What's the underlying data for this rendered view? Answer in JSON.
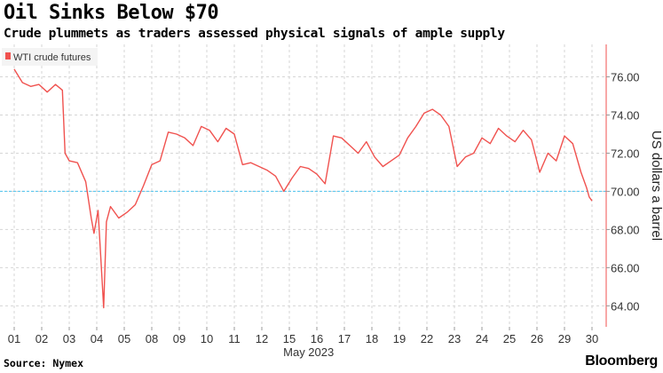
{
  "title": "Oil Sinks Below $70",
  "subtitle": "Crude plummets as traders assessed physical signals of ample supply",
  "footer": {
    "source": "Source: Nymex",
    "brand": "Bloomberg"
  },
  "colors": {
    "line": "#f0524f",
    "reference": "#5ec8ee",
    "grid": "#d6d6d6",
    "legend_swatch": "#f0524f"
  },
  "chart_data": {
    "type": "line",
    "title": "Oil Sinks Below $70",
    "subtitle": "Crude plummets as traders assessed physical signals of ample supply",
    "ylabel": "US dollars a barrel",
    "xlabel": "May 2023",
    "ylim": [
      62.9,
      77.7
    ],
    "yticks": [
      64,
      66,
      68,
      70,
      72,
      74,
      76
    ],
    "ytick_labels": [
      "64.00",
      "66.00",
      "68.00",
      "70.00",
      "72.00",
      "74.00",
      "76.00"
    ],
    "xtick_labels": [
      "01",
      "02",
      "03",
      "04",
      "05",
      "08",
      "09",
      "10",
      "11",
      "12",
      "15",
      "16",
      "17",
      "18",
      "19",
      "22",
      "23",
      "24",
      "25",
      "26",
      "29",
      "30"
    ],
    "x_month_label": "May 2023",
    "reference_line": 70,
    "legend": [
      "WTI crude futures"
    ],
    "series": [
      {
        "name": "WTI crude futures",
        "x": [
          0,
          0.3,
          0.6,
          0.9,
          1.2,
          1.5,
          1.75,
          1.85,
          2.0,
          2.3,
          2.6,
          2.8,
          2.9,
          3.05,
          3.15,
          3.25,
          3.35,
          3.5,
          3.8,
          4.1,
          4.4,
          4.7,
          5.0,
          5.3,
          5.6,
          5.9,
          6.2,
          6.5,
          6.8,
          7.1,
          7.4,
          7.7,
          8.0,
          8.3,
          8.6,
          8.9,
          9.2,
          9.5,
          9.8,
          10.1,
          10.4,
          10.7,
          11.0,
          11.3,
          11.6,
          11.9,
          12.2,
          12.5,
          12.8,
          13.1,
          13.4,
          13.7,
          14.0,
          14.3,
          14.6,
          14.9,
          15.2,
          15.5,
          15.8,
          16.1,
          16.4,
          16.7,
          17.0,
          17.3,
          17.6,
          17.9,
          18.2,
          18.5,
          18.8,
          19.1,
          19.4,
          19.7,
          20.0,
          20.3,
          20.6,
          20.8,
          20.9,
          21.0
        ],
        "values": [
          76.4,
          75.7,
          75.5,
          75.6,
          75.2,
          75.6,
          75.3,
          72.0,
          71.6,
          71.5,
          70.5,
          68.6,
          67.8,
          69.0,
          66.5,
          63.9,
          68.4,
          69.2,
          68.6,
          68.9,
          69.3,
          70.3,
          71.4,
          71.6,
          73.1,
          73.0,
          72.8,
          72.4,
          73.4,
          73.2,
          72.6,
          73.3,
          73.0,
          71.4,
          71.5,
          71.3,
          71.1,
          70.8,
          70.0,
          70.7,
          71.3,
          71.2,
          70.9,
          70.4,
          72.9,
          72.8,
          72.4,
          72.0,
          72.6,
          71.8,
          71.3,
          71.6,
          71.9,
          72.8,
          73.4,
          74.1,
          74.3,
          74.0,
          73.4,
          71.3,
          71.8,
          72.0,
          72.8,
          72.5,
          73.3,
          72.9,
          72.6,
          73.2,
          72.7,
          71.0,
          72.0,
          71.6,
          72.9,
          72.5,
          71.0,
          70.2,
          69.7,
          69.5
        ]
      }
    ]
  }
}
